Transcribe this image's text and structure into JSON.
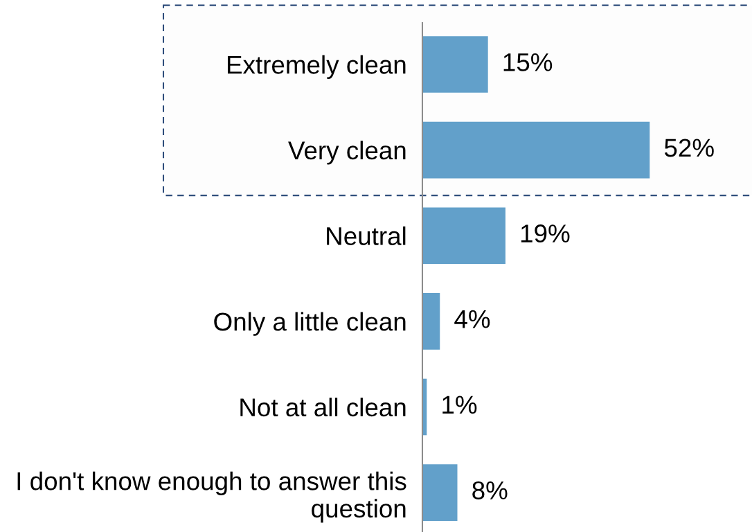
{
  "chart_data": {
    "type": "bar",
    "orientation": "horizontal",
    "categories": [
      "Extremely clean",
      "Very clean",
      "Neutral",
      "Only a little clean",
      "Not at all clean",
      "I don't know enough to answer this question"
    ],
    "values": [
      15,
      52,
      19,
      4,
      1,
      8
    ],
    "color": "#62a0ca",
    "value_labels": [
      "15%",
      "52%",
      "19%",
      "4%",
      "1%",
      "8%"
    ],
    "tick_labels": "y",
    "bands": [
      {
        "axis": "y",
        "from": "Extremely clean",
        "to": "Very clean",
        "color": "#2e4d7b"
      }
    ]
  }
}
